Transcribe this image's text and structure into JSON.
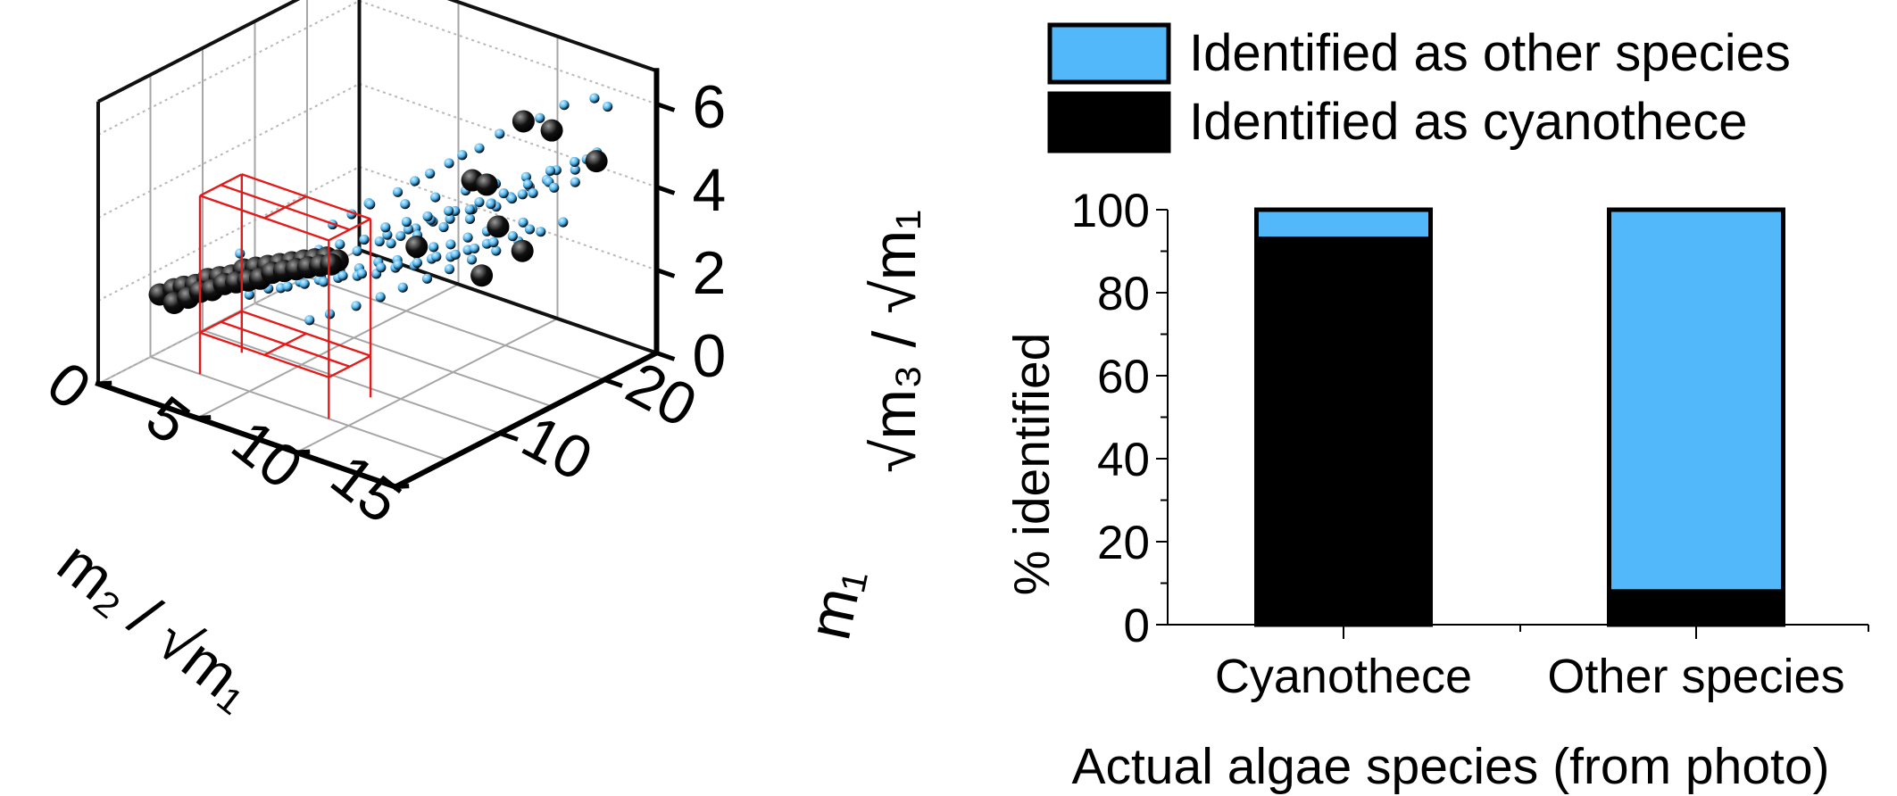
{
  "chart_data": [
    {
      "type": "scatter",
      "chart_kind": "3d-scatter",
      "title": "",
      "axes": {
        "x": {
          "label": "m₂ / √m₁",
          "ticks": [
            "0",
            "5",
            "10",
            "15"
          ],
          "range": [
            0,
            15
          ]
        },
        "y": {
          "label": "m₁",
          "ticks": [
            "10",
            "20"
          ],
          "range": [
            0,
            25
          ]
        },
        "z": {
          "label": "√m₃ / √m₁",
          "ticks": [
            "0",
            "2",
            "4",
            "6"
          ],
          "range": [
            0,
            6.8
          ]
        }
      },
      "grid": true,
      "series": [
        {
          "name": "",
          "color": "#5ab8f2",
          "marker": "small-sphere",
          "points": [
            [
              5.5,
              12.0,
              3.2
            ],
            [
              6.2,
              12.5,
              3.5
            ],
            [
              6.8,
              13.0,
              3.8
            ],
            [
              7.4,
              12.0,
              4.0
            ],
            [
              8.0,
              13.5,
              4.2
            ],
            [
              8.6,
              14.0,
              4.5
            ],
            [
              9.1,
              14.5,
              4.7
            ],
            [
              9.8,
              15.0,
              5.0
            ],
            [
              10.2,
              15.5,
              5.2
            ],
            [
              10.8,
              16.0,
              5.4
            ],
            [
              11.3,
              17.0,
              5.7
            ],
            [
              12.0,
              17.5,
              6.0
            ],
            [
              12.8,
              18.0,
              6.2
            ],
            [
              13.5,
              19.0,
              6.5
            ],
            [
              7.8,
              10.0,
              3.2
            ],
            [
              8.4,
              11.0,
              3.4
            ],
            [
              9.2,
              11.5,
              3.6
            ],
            [
              9.7,
              12.0,
              3.8
            ],
            [
              10.3,
              12.5,
              4.0
            ],
            [
              10.9,
              13.0,
              4.1
            ],
            [
              11.5,
              14.0,
              4.3
            ],
            [
              12.2,
              14.5,
              4.5
            ],
            [
              12.9,
              15.0,
              4.7
            ],
            [
              13.6,
              15.5,
              5.0
            ],
            [
              14.2,
              16.0,
              5.2
            ],
            [
              6.5,
              9.0,
              2.5
            ],
            [
              7.2,
              9.5,
              2.7
            ],
            [
              7.9,
              10.0,
              2.8
            ],
            [
              8.6,
              10.5,
              3.0
            ],
            [
              9.3,
              11.0,
              3.1
            ],
            [
              10.0,
              11.5,
              3.3
            ],
            [
              10.6,
              12.0,
              3.5
            ],
            [
              11.2,
              12.5,
              3.6
            ],
            [
              11.8,
              13.0,
              3.8
            ],
            [
              12.5,
              13.5,
              4.0
            ],
            [
              13.1,
              14.0,
              4.1
            ],
            [
              13.8,
              14.5,
              4.3
            ],
            [
              7.4,
              14.0,
              2.8
            ],
            [
              8.2,
              15.0,
              3.0
            ],
            [
              9.0,
              16.0,
              3.2
            ],
            [
              9.8,
              17.0,
              3.4
            ],
            [
              10.6,
              18.0,
              3.7
            ],
            [
              11.4,
              19.0,
              4.0
            ],
            [
              12.2,
              20.0,
              4.3
            ],
            [
              13.0,
              21.0,
              4.6
            ],
            [
              6.0,
              18.0,
              3.0
            ],
            [
              7.0,
              19.0,
              3.2
            ],
            [
              8.0,
              20.0,
              3.4
            ],
            [
              9.0,
              21.0,
              3.6
            ],
            [
              10.0,
              22.0,
              3.8
            ],
            [
              11.0,
              23.0,
              4.0
            ],
            [
              12.0,
              24.0,
              4.3
            ],
            [
              5.0,
              8.0,
              2.1
            ],
            [
              5.7,
              8.5,
              2.3
            ],
            [
              6.4,
              9.0,
              2.4
            ],
            [
              7.1,
              9.5,
              2.5
            ],
            [
              7.8,
              10.0,
              2.6
            ],
            [
              8.5,
              10.5,
              2.7
            ],
            [
              9.2,
              11.0,
              2.9
            ],
            [
              9.9,
              11.5,
              3.0
            ],
            [
              10.5,
              12.0,
              3.2
            ],
            [
              11.2,
              12.5,
              3.3
            ],
            [
              11.8,
              13.0,
              3.5
            ],
            [
              12.5,
              13.5,
              3.7
            ],
            [
              14.5,
              20.0,
              6.7
            ],
            [
              14.9,
              20.5,
              6.5
            ],
            [
              3.2,
              7.5,
              2.7
            ],
            [
              4.0,
              8.0,
              2.4
            ],
            [
              4.8,
              9.5,
              2.6
            ],
            [
              5.6,
              10.5,
              2.8
            ],
            [
              6.4,
              11.0,
              3.0
            ],
            [
              7.1,
              12.0,
              3.1
            ],
            [
              8.0,
              12.5,
              3.3
            ],
            [
              8.8,
              13.0,
              3.5
            ],
            [
              9.4,
              14.0,
              3.7
            ],
            [
              10.1,
              15.0,
              3.9
            ],
            [
              10.8,
              16.0,
              4.1
            ],
            [
              11.5,
              17.0,
              4.3
            ],
            [
              12.2,
              18.0,
              4.5
            ],
            [
              12.8,
              19.0,
              4.8
            ],
            [
              13.5,
              20.0,
              5.0
            ],
            [
              14.1,
              21.0,
              5.2
            ],
            [
              7.5,
              6.0,
              2.0
            ],
            [
              8.0,
              7.0,
              2.1
            ],
            [
              8.8,
              8.0,
              2.3
            ],
            [
              9.5,
              9.0,
              2.5
            ],
            [
              10.1,
              10.0,
              2.7
            ],
            [
              10.8,
              11.0,
              2.9
            ],
            [
              11.4,
              12.0,
              3.1
            ],
            [
              12.0,
              13.0,
              3.3
            ],
            [
              12.7,
              14.0,
              3.5
            ],
            [
              13.3,
              15.0,
              3.7
            ],
            [
              13.9,
              16.0,
              3.9
            ],
            [
              14.5,
              17.0,
              4.1
            ],
            [
              5.8,
              16.5,
              2.6
            ],
            [
              6.6,
              17.0,
              2.8
            ],
            [
              7.4,
              17.5,
              3.0
            ],
            [
              8.2,
              18.0,
              3.2
            ],
            [
              9.0,
              18.5,
              3.3
            ],
            [
              9.8,
              19.0,
              3.5
            ],
            [
              10.6,
              19.5,
              3.7
            ],
            [
              11.4,
              20.0,
              3.9
            ],
            [
              12.2,
              20.5,
              4.1
            ],
            [
              13.0,
              21.0,
              4.3
            ],
            [
              4.2,
              6.5,
              2.0
            ],
            [
              4.9,
              7.0,
              2.2
            ],
            [
              5.6,
              7.5,
              2.3
            ],
            [
              6.2,
              8.0,
              2.4
            ],
            [
              6.9,
              8.5,
              2.5
            ],
            [
              7.6,
              9.0,
              2.7
            ],
            [
              8.3,
              9.5,
              2.8
            ],
            [
              9.0,
              10.0,
              3.0
            ],
            [
              9.6,
              10.5,
              3.1
            ],
            [
              10.3,
              11.0,
              3.2
            ],
            [
              11.0,
              11.5,
              3.4
            ],
            [
              11.7,
              12.0,
              3.5
            ],
            [
              12.4,
              12.5,
              3.7
            ],
            [
              13.1,
              13.0,
              3.9
            ],
            [
              13.8,
              13.5,
              4.1
            ],
            [
              14.4,
              14.0,
              4.3
            ]
          ]
        },
        {
          "name": "",
          "color": "#050505",
          "marker": "large-sphere",
          "points": [
            [
              1.0,
              4.0,
              1.8
            ],
            [
              1.6,
              4.2,
              2.0
            ],
            [
              2.0,
              4.4,
              2.1
            ],
            [
              2.5,
              4.6,
              2.2
            ],
            [
              3.0,
              4.8,
              2.4
            ],
            [
              3.5,
              5.0,
              2.5
            ],
            [
              4.0,
              5.2,
              2.6
            ],
            [
              4.5,
              5.4,
              2.8
            ],
            [
              5.0,
              5.6,
              2.9
            ],
            [
              5.5,
              5.8,
              3.0
            ],
            [
              6.0,
              6.0,
              3.1
            ],
            [
              6.5,
              6.2,
              3.2
            ],
            [
              7.0,
              6.4,
              3.3
            ],
            [
              7.5,
              6.5,
              3.4
            ],
            [
              8.0,
              6.7,
              3.5
            ],
            [
              8.5,
              6.8,
              3.5
            ],
            [
              1.2,
              5.0,
              1.5
            ],
            [
              1.8,
              5.2,
              1.7
            ],
            [
              2.3,
              5.4,
              1.9
            ],
            [
              2.8,
              5.6,
              2.0
            ],
            [
              3.3,
              5.8,
              2.2
            ],
            [
              3.8,
              6.0,
              2.3
            ],
            [
              4.3,
              6.2,
              2.4
            ],
            [
              4.8,
              6.4,
              2.5
            ],
            [
              5.3,
              6.6,
              2.7
            ],
            [
              5.8,
              6.8,
              2.8
            ],
            [
              6.3,
              7.0,
              2.9
            ],
            [
              6.8,
              7.2,
              3.0
            ],
            [
              7.3,
              7.4,
              3.1
            ],
            [
              7.8,
              7.5,
              3.2
            ],
            [
              12.5,
              17.0,
              6.2
            ],
            [
              13.4,
              18.0,
              6.0
            ],
            [
              14.6,
              20.0,
              5.2
            ],
            [
              12.8,
              14.0,
              4.1
            ],
            [
              11.5,
              14.0,
              5.0
            ],
            [
              11.7,
              15.0,
              4.8
            ],
            [
              10.8,
              10.0,
              3.8
            ],
            [
              13.5,
              15.0,
              3.5
            ],
            [
              12.5,
              13.0,
              3.0
            ]
          ]
        }
      ],
      "gate_boxes": [
        {
          "color": "#e41b1b",
          "x": [
            2.5,
            9.0
          ],
          "y": [
            5.0,
            9.0
          ],
          "z": [
            1.0,
            4.3
          ]
        }
      ]
    },
    {
      "type": "bar",
      "stacked": true,
      "categories": [
        "Cyanothece",
        "Other species"
      ],
      "series": [
        {
          "name": "Identified as other species",
          "color": "#52b8fa",
          "values": [
            7,
            92
          ]
        },
        {
          "name": "Identified as cyanothece",
          "color": "#000000",
          "values": [
            93,
            8
          ]
        }
      ],
      "title": "",
      "xlabel": "Actual algae species (from photo)",
      "ylabel": "% identified",
      "ylim": [
        0,
        100
      ],
      "ytick_step": 20,
      "legend_position": "top",
      "grid": false
    }
  ]
}
